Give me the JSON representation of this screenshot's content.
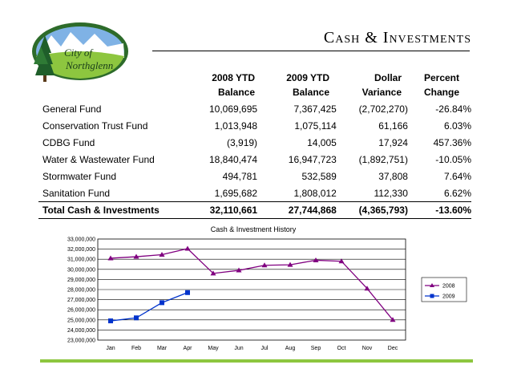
{
  "logo": {
    "text_line1": "City of",
    "text_line2": "Northglenn"
  },
  "slide_title": "Cash & Investments",
  "columns": [
    {
      "line1": "2008 YTD",
      "line2": "Balance"
    },
    {
      "line1": "2009 YTD",
      "line2": "Balance"
    },
    {
      "line1": "Dollar",
      "line2": "Variance"
    },
    {
      "line1": "Percent",
      "line2": "Change"
    }
  ],
  "funds": [
    {
      "name": "General Fund",
      "ytd2008": "10,069,695",
      "ytd2009": "7,367,425",
      "variance": "(2,702,270)",
      "change": "-26.84%"
    },
    {
      "name": "Conservation Trust Fund",
      "ytd2008": "1,013,948",
      "ytd2009": "1,075,114",
      "variance": "61,166",
      "change": "6.03%"
    },
    {
      "name": "CDBG Fund",
      "ytd2008": "(3,919)",
      "ytd2009": "14,005",
      "variance": "17,924",
      "change": "457.36%"
    },
    {
      "name": "Water & Wastewater Fund",
      "ytd2008": "18,840,474",
      "ytd2009": "16,947,723",
      "variance": "(1,892,751)",
      "change": "-10.05%"
    },
    {
      "name": "Stormwater Fund",
      "ytd2008": "494,781",
      "ytd2009": "532,589",
      "variance": "37,808",
      "change": "7.64%"
    },
    {
      "name": "Sanitation Fund",
      "ytd2008": "1,695,682",
      "ytd2009": "1,808,012",
      "variance": "112,330",
      "change": "6.62%"
    }
  ],
  "total": {
    "name": "Total Cash & Investments",
    "ytd2008": "32,110,661",
    "ytd2009": "27,744,868",
    "variance": "(4,365,793)",
    "change": "-13.60%"
  },
  "chart_data": {
    "type": "line",
    "title": "Cash & Investment History",
    "categories": [
      "Jan",
      "Feb",
      "Mar",
      "Apr",
      "May",
      "Jun",
      "Jul",
      "Aug",
      "Sep",
      "Oct",
      "Nov",
      "Dec"
    ],
    "ylim": [
      23000000,
      33000000
    ],
    "yticks": [
      "23,000,000",
      "24,000,000",
      "25,000,000",
      "26,000,000",
      "27,000,000",
      "28,000,000",
      "29,000,000",
      "30,000,000",
      "31,000,000",
      "32,000,000",
      "33,000,000"
    ],
    "grid": true,
    "legend": "right",
    "series": [
      {
        "name": "2008",
        "color": "#800080",
        "marker": "triangle",
        "values": [
          31100000,
          31250000,
          31450000,
          32050000,
          29600000,
          29900000,
          30400000,
          30450000,
          30900000,
          30800000,
          28100000,
          25000000
        ]
      },
      {
        "name": "2009",
        "color": "#0033cc",
        "marker": "square",
        "values": [
          24900000,
          25200000,
          26700000,
          27700000,
          null,
          null,
          null,
          null,
          null,
          null,
          null,
          null
        ]
      }
    ]
  }
}
